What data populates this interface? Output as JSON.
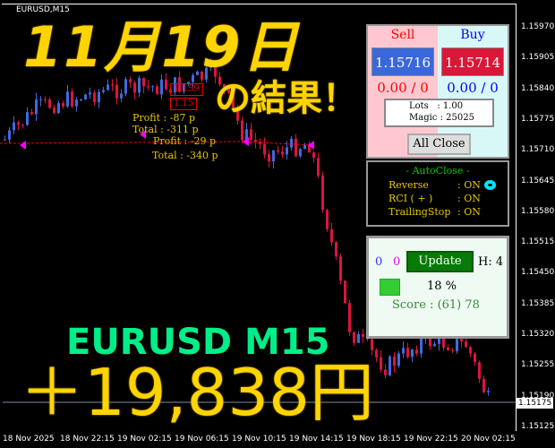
{
  "chart": {
    "symbol": "EURUSD,M15",
    "current_price": "1.15175",
    "price_axis": [
      "1.15970",
      "1.15905",
      "1.15840",
      "1.15775",
      "1.15710",
      "1.15645",
      "1.15580",
      "1.15515",
      "1.15450",
      "1.15385",
      "1.15320",
      "1.15255",
      "1.15190",
      "1.15125"
    ],
    "time_axis": [
      "18 Nov 2025",
      "18 Nov 22:15",
      "19 Nov 02:15",
      "19 Nov 06:15",
      "19 Nov 10:15",
      "19 Nov 14:15",
      "19 Nov 18:15",
      "19 Nov 22:15",
      "20 Nov 02:15"
    ],
    "colors": {
      "bull": "#4169e1",
      "bear": "#dc143c",
      "grid_line": "#8090a0"
    },
    "trade_labels": {
      "profit1": "Profit : -87 p",
      "total1": "Total : -311 p",
      "profit2": "Profit : -29 p",
      "total2": "Total : -340 p",
      "price_tag1": "1.159",
      "price_tag2": "1.15"
    }
  },
  "overlay": {
    "date": "11月19日",
    "result": "の結果！",
    "pair": "EURUSD M15",
    "amount": "＋19,838円"
  },
  "trade_panel": {
    "sell_label": "Sell",
    "buy_label": "Buy",
    "sell_price": "1.15716",
    "buy_price": "1.15714",
    "sell_pl": "0.00 / 0",
    "buy_pl": "0.00 / 0",
    "lots": "Lots   : 1.00",
    "magic": "Magic : 25025",
    "all_close": "All Close"
  },
  "autoclose_panel": {
    "title": "- AutoClose -",
    "rows": [
      {
        "label": "Reverse",
        "value": ": ON"
      },
      {
        "label": "RCI  ( + )",
        "value": ": ON"
      },
      {
        "label": "TrailingStop",
        "value": ": ON"
      }
    ],
    "indicator_color": "#00e5ff"
  },
  "score_panel": {
    "count_blue": "0",
    "count_magenta": "0",
    "update": "Update",
    "h": "H: 4",
    "percent": "18 %",
    "score": "Score : (61) 78",
    "progress": 0.18
  }
}
